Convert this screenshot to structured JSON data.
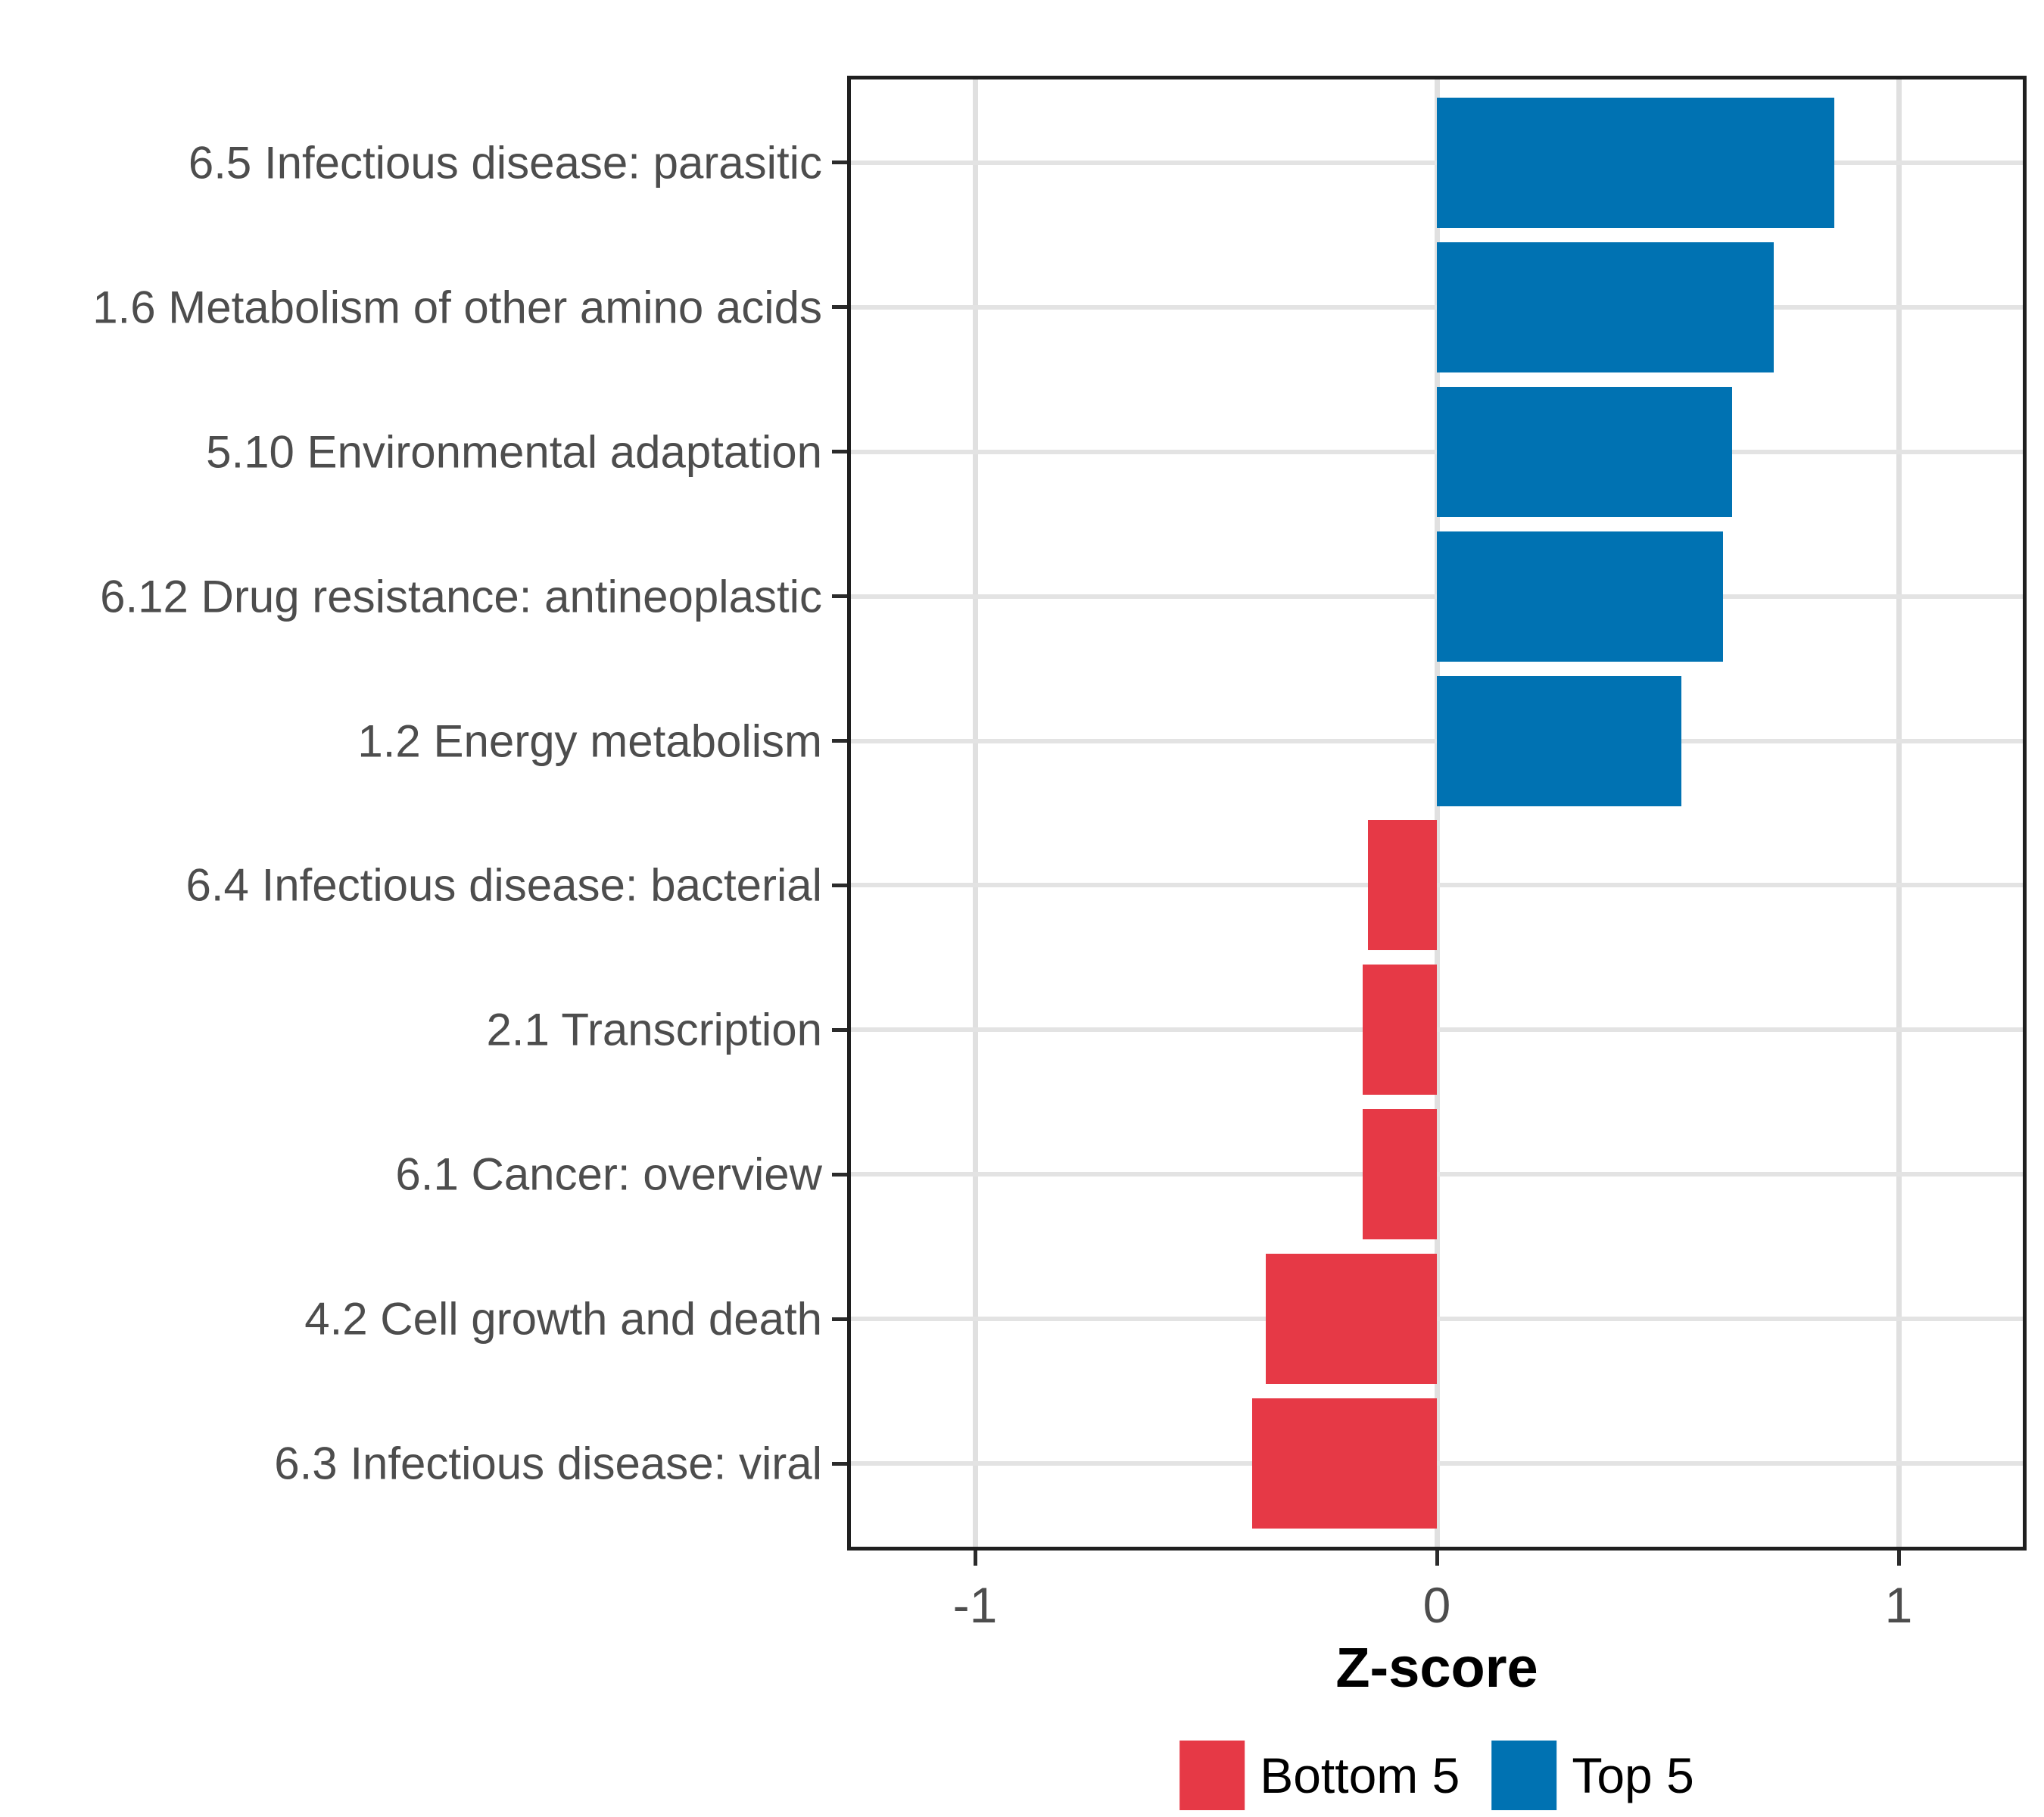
{
  "chart_data": {
    "type": "bar",
    "orientation": "horizontal",
    "title": "",
    "xlabel": "Z-score",
    "ylabel": "",
    "categories": [
      "6.5 Infectious disease: parasitic",
      "1.6 Metabolism of other amino acids",
      "5.10 Environmental adaptation",
      "6.12 Drug resistance: antineoplastic",
      "1.2 Energy metabolism",
      "6.4 Infectious disease: bacterial",
      "2.1 Transcription",
      "6.1 Cancer: overview",
      "4.2 Cell growth and death",
      "6.3 Infectious disease: viral"
    ],
    "values": [
      0.86,
      0.73,
      0.64,
      0.62,
      0.53,
      -0.15,
      -0.16,
      -0.16,
      -0.37,
      -0.4
    ],
    "groups": [
      "Top 5",
      "Top 5",
      "Top 5",
      "Top 5",
      "Top 5",
      "Bottom 5",
      "Bottom 5",
      "Bottom 5",
      "Bottom 5",
      "Bottom 5"
    ],
    "colors": {
      "Bottom 5": "#E63946",
      "Top 5": "#0072B2"
    },
    "xlim": [
      -1.28,
      1.28
    ],
    "x_ticks": [
      -1,
      0,
      1
    ],
    "x_tick_labels": [
      "-1",
      "0",
      "1"
    ],
    "grid": "major-only",
    "axis_text_color": "#4D4D4D",
    "legend": {
      "position": "bottom",
      "entries": [
        {
          "label": "Bottom 5",
          "color": "#E63946"
        },
        {
          "label": "Top 5",
          "color": "#0072B2"
        }
      ]
    }
  }
}
